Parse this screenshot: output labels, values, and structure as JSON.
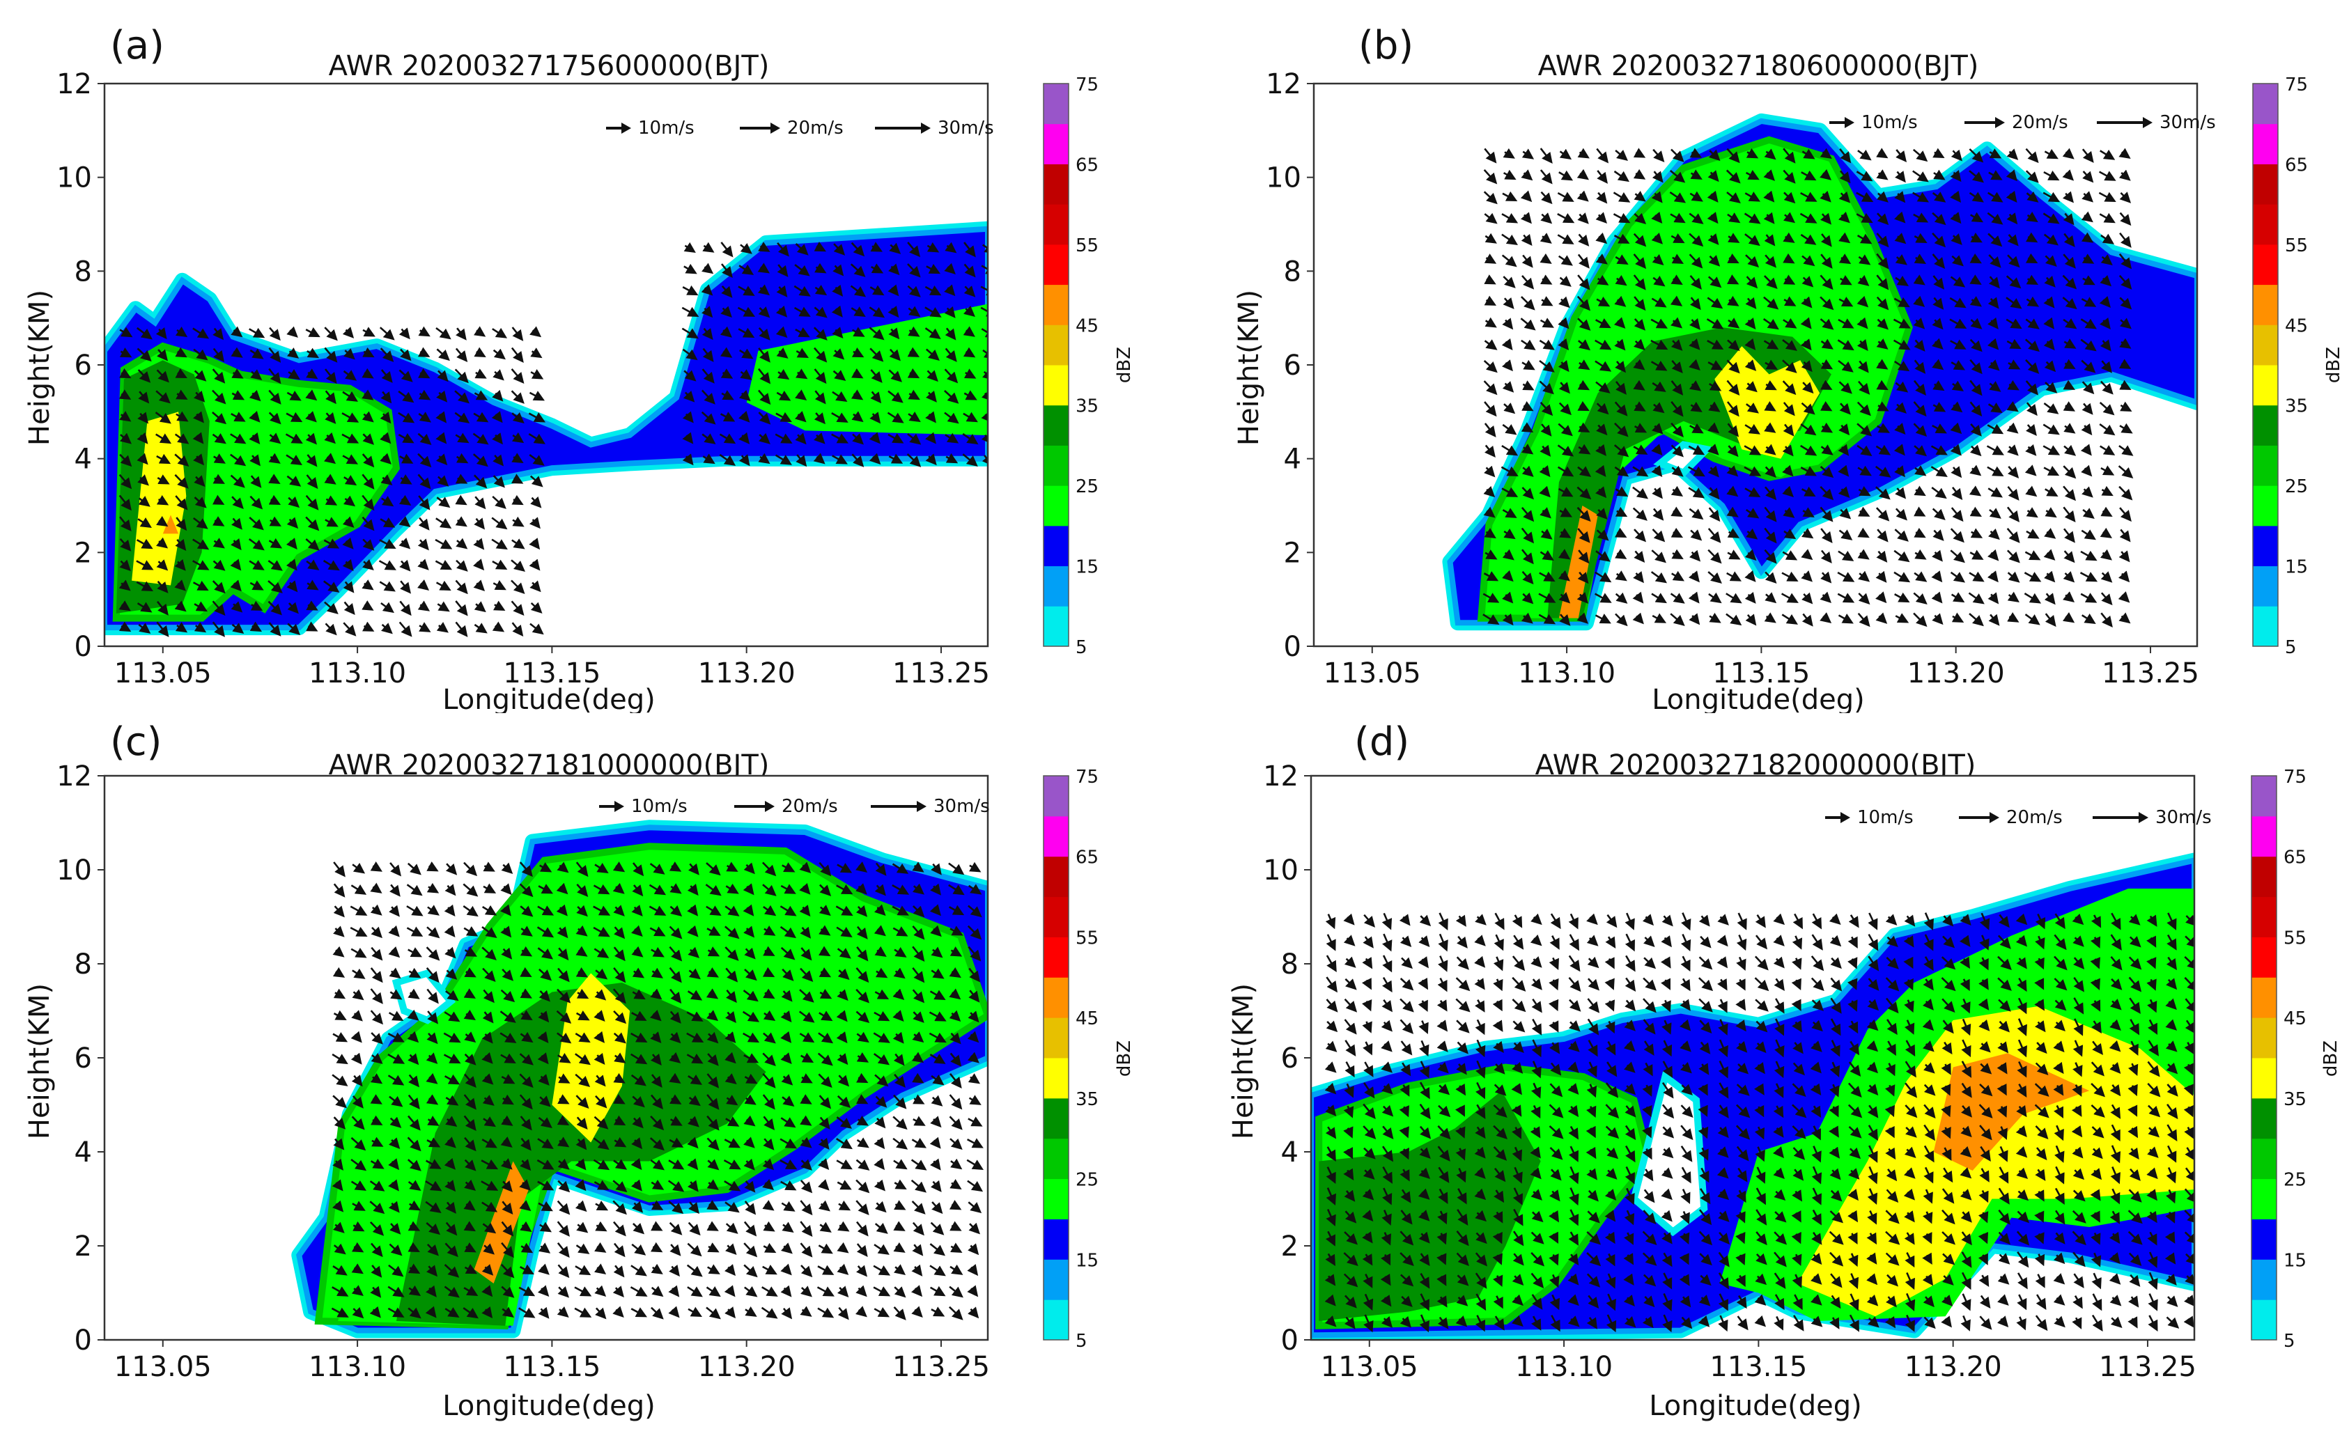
{
  "colorbar": {
    "label": "dBZ",
    "levels": [
      5,
      10,
      15,
      20,
      25,
      30,
      35,
      40,
      45,
      50,
      55,
      60,
      65,
      70,
      75
    ],
    "tick_labels": [
      "5",
      "15",
      "25",
      "35",
      "45",
      "55",
      "65",
      "75"
    ],
    "colors": [
      "#00ecec",
      "#01a0f6",
      "#0000f6",
      "#00ff00",
      "#00c800",
      "#009000",
      "#ffff00",
      "#e7c000",
      "#ff9000",
      "#ff0000",
      "#d60000",
      "#c00000",
      "#ff00f0",
      "#9955c9"
    ]
  },
  "vector_key": [
    "10m/s",
    "20m/s",
    "30m/s"
  ],
  "chart_data": [
    {
      "panel_label": "(a)",
      "title": "AWR 20200327175600000(BJT)",
      "type": "heatmap",
      "xlabel": "Longitude(deg)",
      "ylabel": "Height(KM)",
      "xlim": [
        113.035,
        113.262
      ],
      "ylim": [
        0,
        12
      ],
      "xticks": [
        "113.05",
        "113.10",
        "113.15",
        "113.20",
        "113.25"
      ],
      "yticks": [
        "0",
        "2",
        "4",
        "6",
        "8",
        "10",
        "12"
      ],
      "max_dbz": 55
    },
    {
      "panel_label": "(b)",
      "title": "AWR 20200327180600000(BJT)",
      "type": "heatmap",
      "xlabel": "Longitude(deg)",
      "ylabel": "Height(KM)",
      "xlim": [
        113.035,
        113.262
      ],
      "ylim": [
        0,
        12
      ],
      "xticks": [
        "113.05",
        "113.10",
        "113.15",
        "113.20",
        "113.25"
      ],
      "yticks": [
        "0",
        "2",
        "4",
        "6",
        "8",
        "10",
        "12"
      ],
      "max_dbz": 55
    },
    {
      "panel_label": "(c)",
      "title": "AWR 20200327181000000(BJT)",
      "type": "heatmap",
      "xlabel": "Longitude(deg)",
      "ylabel": "Height(KM)",
      "xlim": [
        113.035,
        113.262
      ],
      "ylim": [
        0,
        12
      ],
      "xticks": [
        "113.05",
        "113.10",
        "113.15",
        "113.20",
        "113.25"
      ],
      "yticks": [
        "0",
        "2",
        "4",
        "6",
        "8",
        "10",
        "12"
      ],
      "max_dbz": 55
    },
    {
      "panel_label": "(d)",
      "title": "AWR 20200327182000000(BJT)",
      "type": "heatmap",
      "xlabel": "Longitude(deg)",
      "ylabel": "Height(KM)",
      "xlim": [
        113.035,
        113.262
      ],
      "ylim": [
        0,
        12
      ],
      "xticks": [
        "113.05",
        "113.10",
        "113.15",
        "113.20",
        "113.25"
      ],
      "yticks": [
        "0",
        "2",
        "4",
        "6",
        "8",
        "10",
        "12"
      ],
      "max_dbz": 55
    }
  ]
}
